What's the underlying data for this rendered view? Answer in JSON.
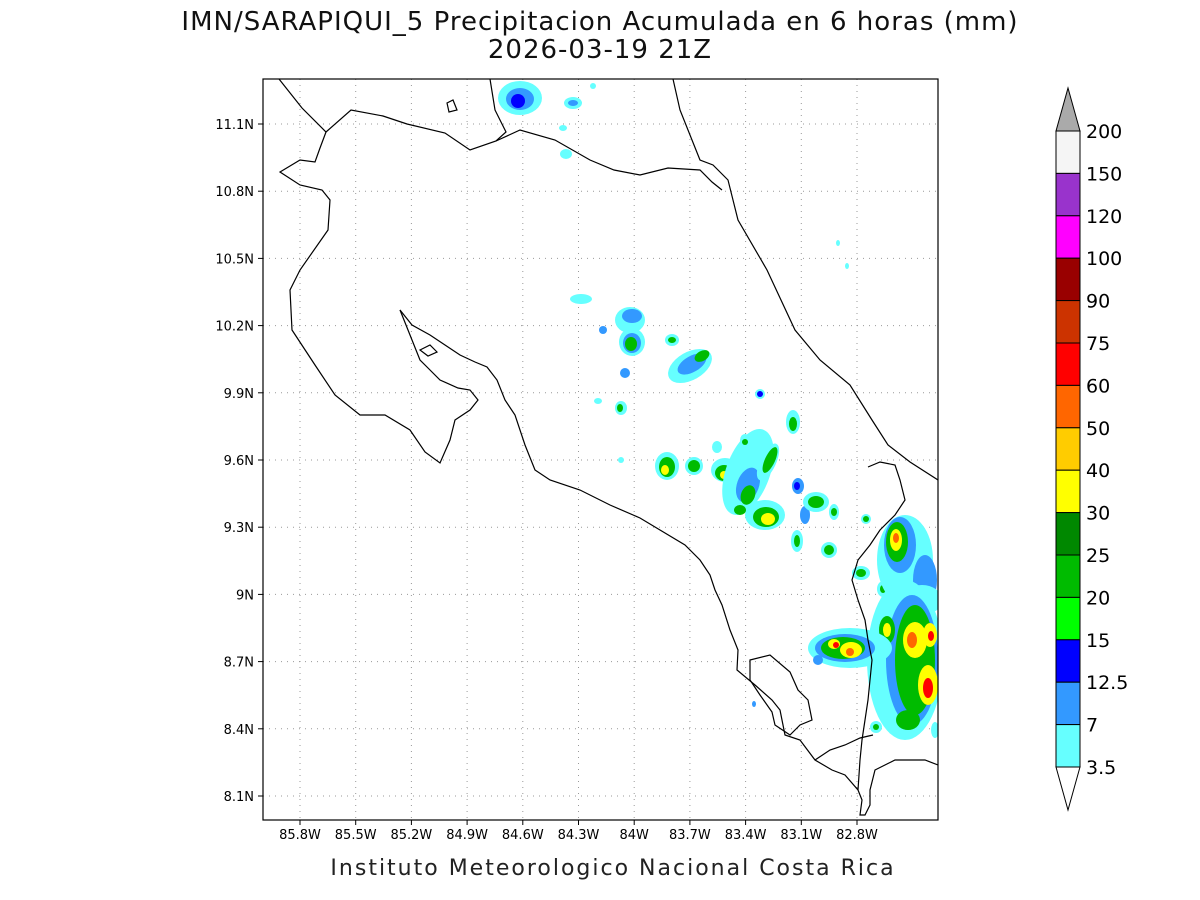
{
  "title_line1": "IMN/SARAPIQUI_5 Precipitacion Acumulada en 6 horas (mm)",
  "title_line2": "2026-03-19 21Z",
  "footer": "Instituto Meteorologico Nacional Costa Rica",
  "map": {
    "lat_labels": [
      "11.1N",
      "10.8N",
      "10.5N",
      "10.2N",
      "9.9N",
      "9.6N",
      "9.3N",
      "9N",
      "8.7N",
      "8.4N",
      "8.1N"
    ],
    "lon_labels": [
      "85.8W",
      "85.5W",
      "85.2W",
      "84.9W",
      "84.6W",
      "84.3W",
      "84W",
      "83.7W",
      "83.4W",
      "83.1W",
      "82.8W"
    ],
    "grid": "dotted",
    "colors": {
      "border": "#000000",
      "background": "#ffffff"
    }
  },
  "colorbar": {
    "labels": [
      "200",
      "150",
      "120",
      "100",
      "90",
      "75",
      "60",
      "50",
      "40",
      "30",
      "25",
      "20",
      "15",
      "12.5",
      "7",
      "3.5"
    ],
    "colors": [
      "#aaaaaa",
      "#f5f5f5",
      "#9933cc",
      "#ff00ff",
      "#990000",
      "#cc3300",
      "#ff0000",
      "#ff6600",
      "#ffcc00",
      "#ffff00",
      "#008800",
      "#00bb00",
      "#00ff00",
      "#0000ff",
      "#3399ff",
      "#66ffff",
      "#ffffff"
    ],
    "extend": "both"
  }
}
